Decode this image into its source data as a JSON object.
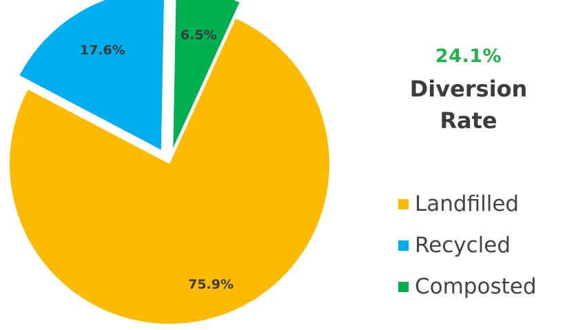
{
  "colors": {
    "landfilled": "#FDBB00",
    "recycled": "#00AEEF",
    "composted": "#00B050",
    "highlight": "#22B14C"
  },
  "headline": {
    "rate": "24.1%",
    "label_line1": "Diversion",
    "label_line2": "Rate"
  },
  "chart_data": {
    "type": "pie",
    "title": "",
    "slices": [
      {
        "name": "Landfilled",
        "value": 75.9,
        "label": "75.9%"
      },
      {
        "name": "Recycled",
        "value": 17.6,
        "label": "17.6%"
      },
      {
        "name": "Composted",
        "value": 6.5,
        "label": "6.5%"
      }
    ],
    "legend_position": "right"
  },
  "legend": {
    "items": [
      {
        "label": "Landfilled",
        "color": "#FDBB00"
      },
      {
        "label": "Recycled",
        "color": "#00AEEF"
      },
      {
        "label": "Composted",
        "color": "#00B050"
      }
    ]
  }
}
